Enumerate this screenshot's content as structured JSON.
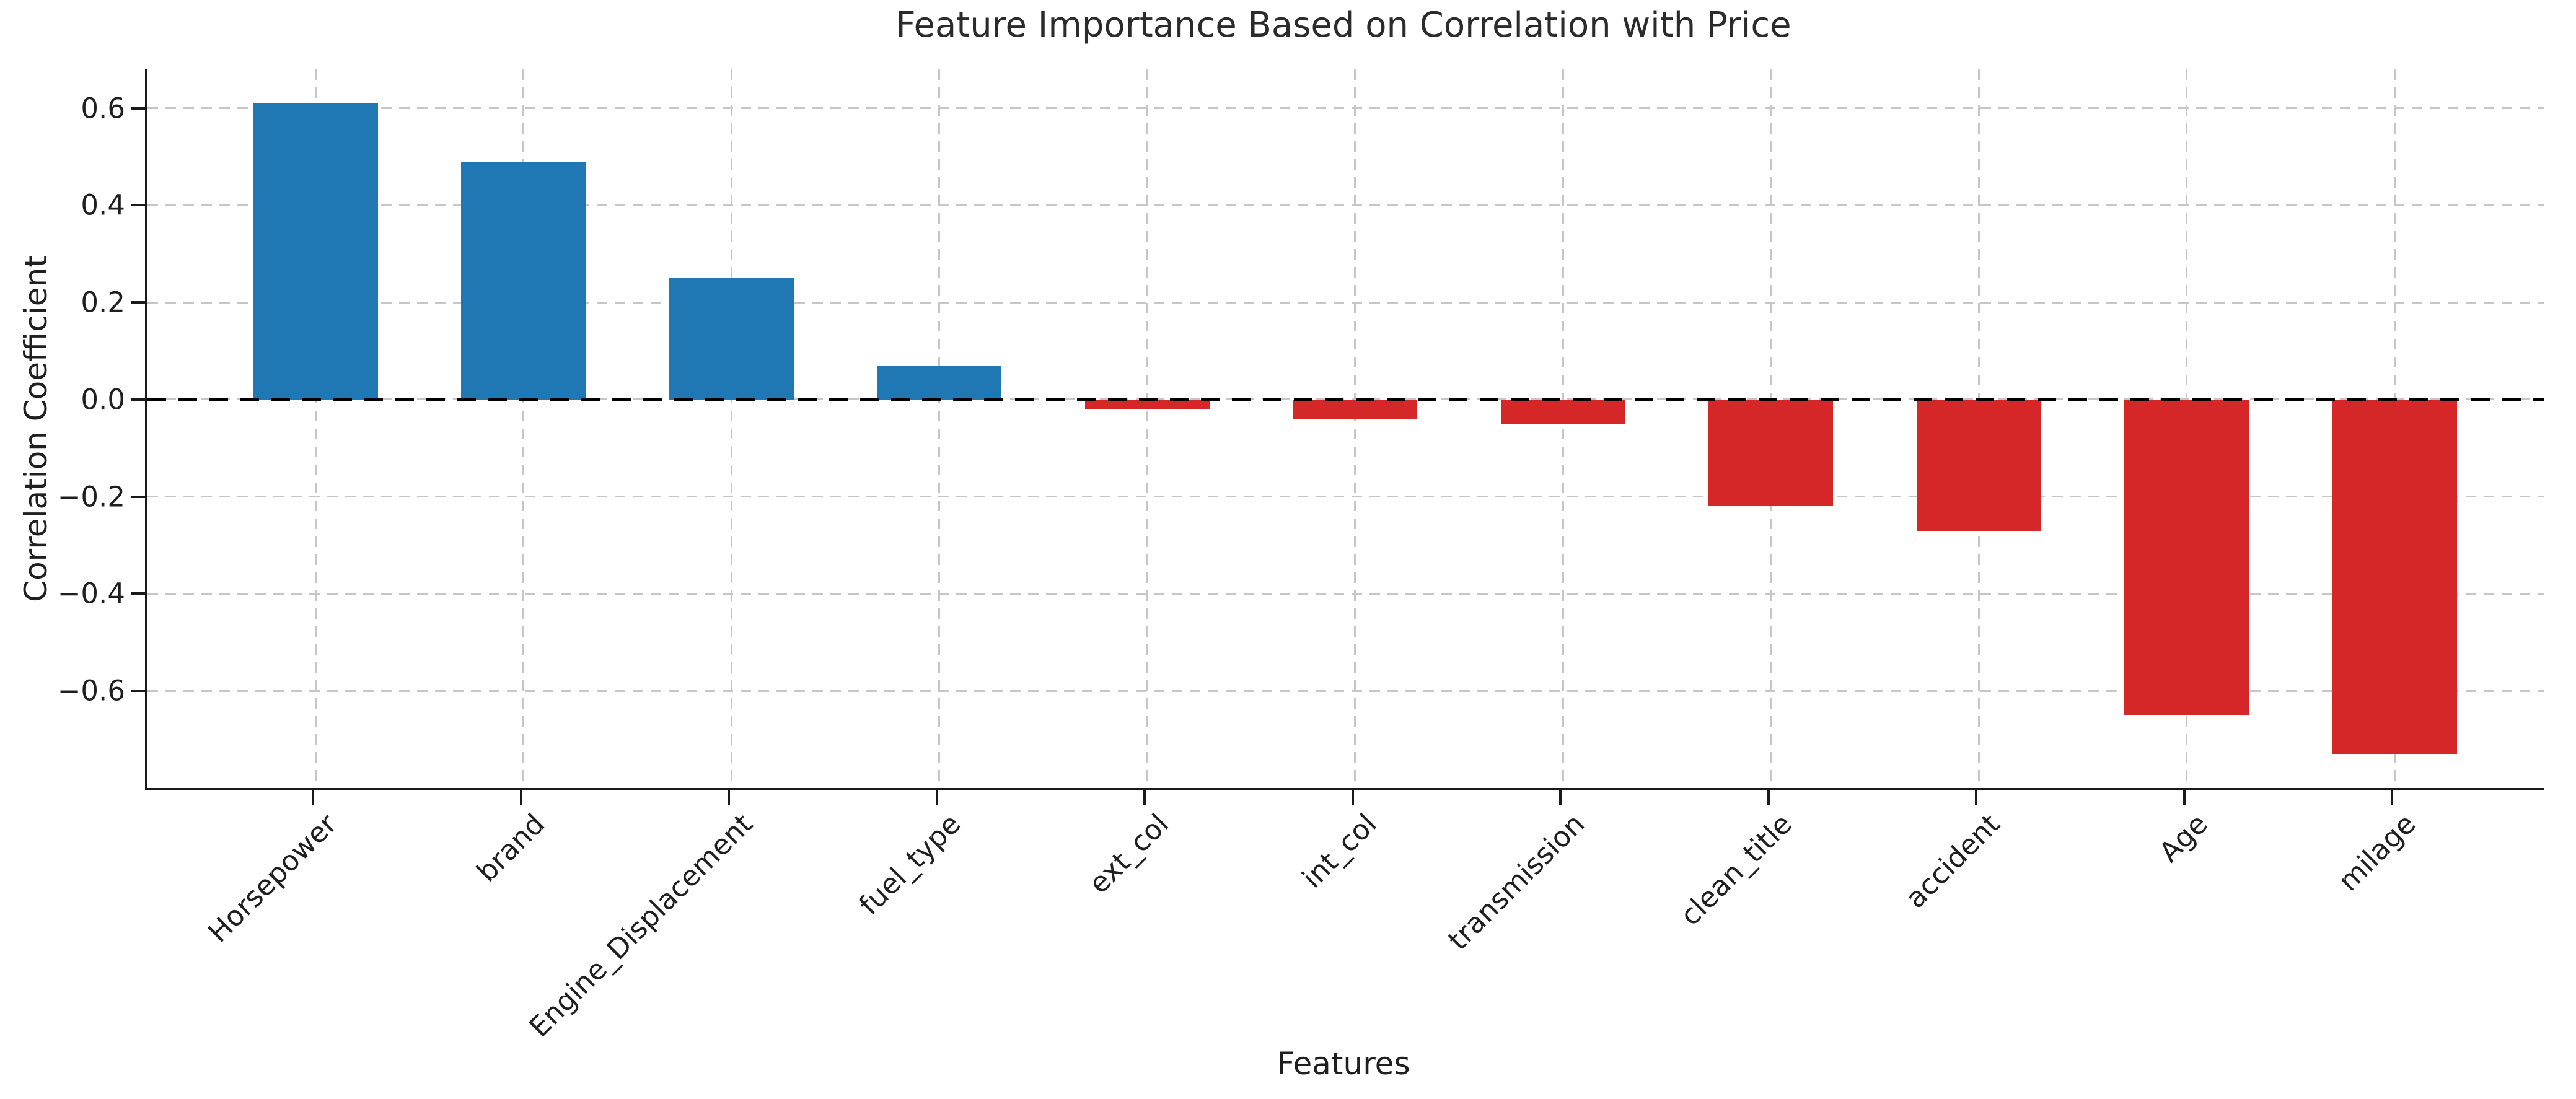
{
  "figure": {
    "background": "#ffffff"
  },
  "chart_data": {
    "type": "bar",
    "title": "Feature Importance Based on Correlation with Price",
    "xlabel": "Features",
    "ylabel": "Correlation Coefficient",
    "categories": [
      "Horsepower",
      "brand",
      "Engine_Displacement",
      "fuel_type",
      "ext_col",
      "int_col",
      "transmission",
      "clean_title",
      "accident",
      "Age",
      "milage"
    ],
    "values": [
      0.61,
      0.49,
      0.25,
      0.07,
      -0.02,
      -0.04,
      -0.05,
      -0.22,
      -0.27,
      -0.65,
      -0.73
    ],
    "bar_colors": {
      "positive": "#1f77b4",
      "negative": "#d62728"
    },
    "ylim": [
      -0.8,
      0.68
    ],
    "yticks": [
      0.6,
      0.4,
      0.2,
      0.0,
      -0.2,
      -0.4,
      -0.6
    ],
    "ytick_labels": [
      "0.6",
      "0.4",
      "0.2",
      "0.0",
      "−0.2",
      "−0.4",
      "−0.6"
    ],
    "zero_line": {
      "color": "#000000",
      "style": "dashed"
    },
    "grid": {
      "visible": true,
      "style": "dashed",
      "color": "#c6c6c6"
    },
    "x_tick_rotation_deg": 45,
    "legend": "none"
  }
}
